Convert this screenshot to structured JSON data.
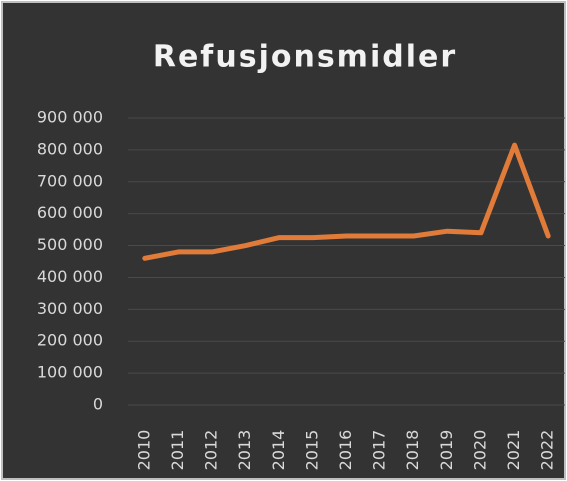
{
  "chart_data": {
    "type": "line",
    "title": "Refusjonsmidler",
    "categories": [
      "2010",
      "2011",
      "2012",
      "2013",
      "2014",
      "2015",
      "2016",
      "2017",
      "2018",
      "2019",
      "2020",
      "2021",
      "2022"
    ],
    "series": [
      {
        "name": "Refusjonsmidler",
        "color": "#e07b39",
        "values": [
          460000,
          480000,
          480000,
          500000,
          525000,
          525000,
          530000,
          530000,
          530000,
          545000,
          540000,
          815000,
          530000
        ]
      }
    ],
    "ylim": [
      0,
      900000
    ],
    "yticks": [
      0,
      {
        "value": 100000,
        "label": "100 000"
      },
      {
        "value": 200000,
        "label": "200 000"
      },
      {
        "value": 300000,
        "label": "300 000"
      },
      {
        "value": 400000,
        "label": "400 000"
      },
      {
        "value": 500000,
        "label": "500 000"
      },
      {
        "value": 600000,
        "label": "600 000"
      },
      {
        "value": 700000,
        "label": "700 000"
      },
      {
        "value": 800000,
        "label": "800 000"
      },
      {
        "value": 900000,
        "label": "900 000"
      }
    ],
    "grid": true
  }
}
